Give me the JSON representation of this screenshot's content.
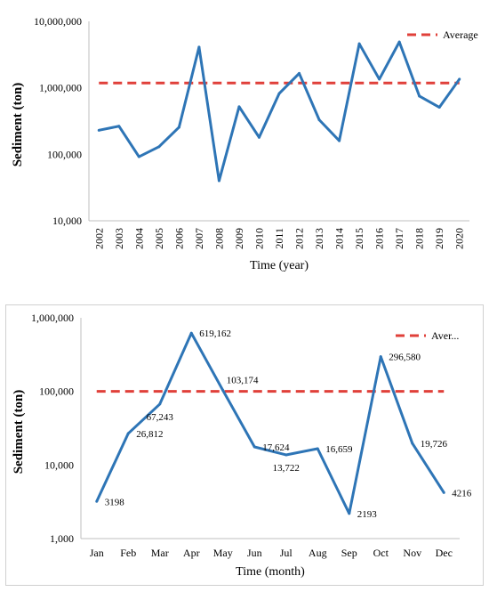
{
  "chart_data": [
    {
      "type": "line",
      "ylabel": "Sediment (ton)",
      "xlabel": "Time (year)",
      "yscale": "log",
      "ylim": [
        10000,
        10000000
      ],
      "ytick_labels": [
        "10,000",
        "100,000",
        "1,000,000",
        "10,000,000"
      ],
      "yticks": [
        10000,
        100000,
        1000000,
        10000000
      ],
      "categories": [
        "2002",
        "2003",
        "2004",
        "2005",
        "2006",
        "2007",
        "2008",
        "2009",
        "2010",
        "2011",
        "2012",
        "2013",
        "2014",
        "2015",
        "2016",
        "2017",
        "2018",
        "2019",
        "2020"
      ],
      "series": [
        {
          "values": [
            230000,
            265000,
            92000,
            130000,
            255000,
            4100000,
            40000,
            520000,
            180000,
            820000,
            1650000,
            330000,
            160000,
            4600000,
            1350000,
            4900000,
            750000,
            510000,
            1350000
          ],
          "color": "#2e75b6"
        },
        {
          "name": "Average",
          "values": [
            1180000,
            1180000,
            1180000,
            1180000,
            1180000,
            1180000,
            1180000,
            1180000,
            1180000,
            1180000,
            1180000,
            1180000,
            1180000,
            1180000,
            1180000,
            1180000,
            1180000,
            1180000,
            1180000
          ],
          "color": "#e0403a",
          "style": "dashed"
        }
      ],
      "legend": {
        "position": "top-right",
        "labels": [
          "Average"
        ]
      },
      "grid": false
    },
    {
      "type": "line",
      "ylabel": "Sediment (ton)",
      "xlabel": "Time (month)",
      "yscale": "log",
      "ylim": [
        1000,
        1000000
      ],
      "ytick_labels": [
        "1,000",
        "10,000",
        "100,000",
        "1,000,000"
      ],
      "yticks": [
        1000,
        10000,
        100000,
        1000000
      ],
      "categories": [
        "Jan",
        "Feb",
        "Mar",
        "Apr",
        "May",
        "Jun",
        "Jul",
        "Aug",
        "Sep",
        "Oct",
        "Nov",
        "Dec"
      ],
      "series": [
        {
          "values": [
            3198,
            26812,
            67243,
            619162,
            103174,
            17624,
            13722,
            16659,
            2193,
            296580,
            19726,
            4216
          ],
          "color": "#2e75b6"
        },
        {
          "name": "Aver...",
          "values": [
            100000,
            100000,
            100000,
            100000,
            100000,
            100000,
            100000,
            100000,
            100000,
            100000,
            100000,
            100000
          ],
          "color": "#e0403a",
          "style": "dashed"
        }
      ],
      "data_labels": [
        "3198",
        "26,812",
        "67,243",
        "619,162",
        "103,174",
        "17,624",
        "13,722",
        "16,659",
        "2193",
        "296,580",
        "19,726",
        "4216"
      ],
      "legend": {
        "position": "top-right",
        "labels": [
          "Aver..."
        ]
      },
      "grid": false
    }
  ]
}
